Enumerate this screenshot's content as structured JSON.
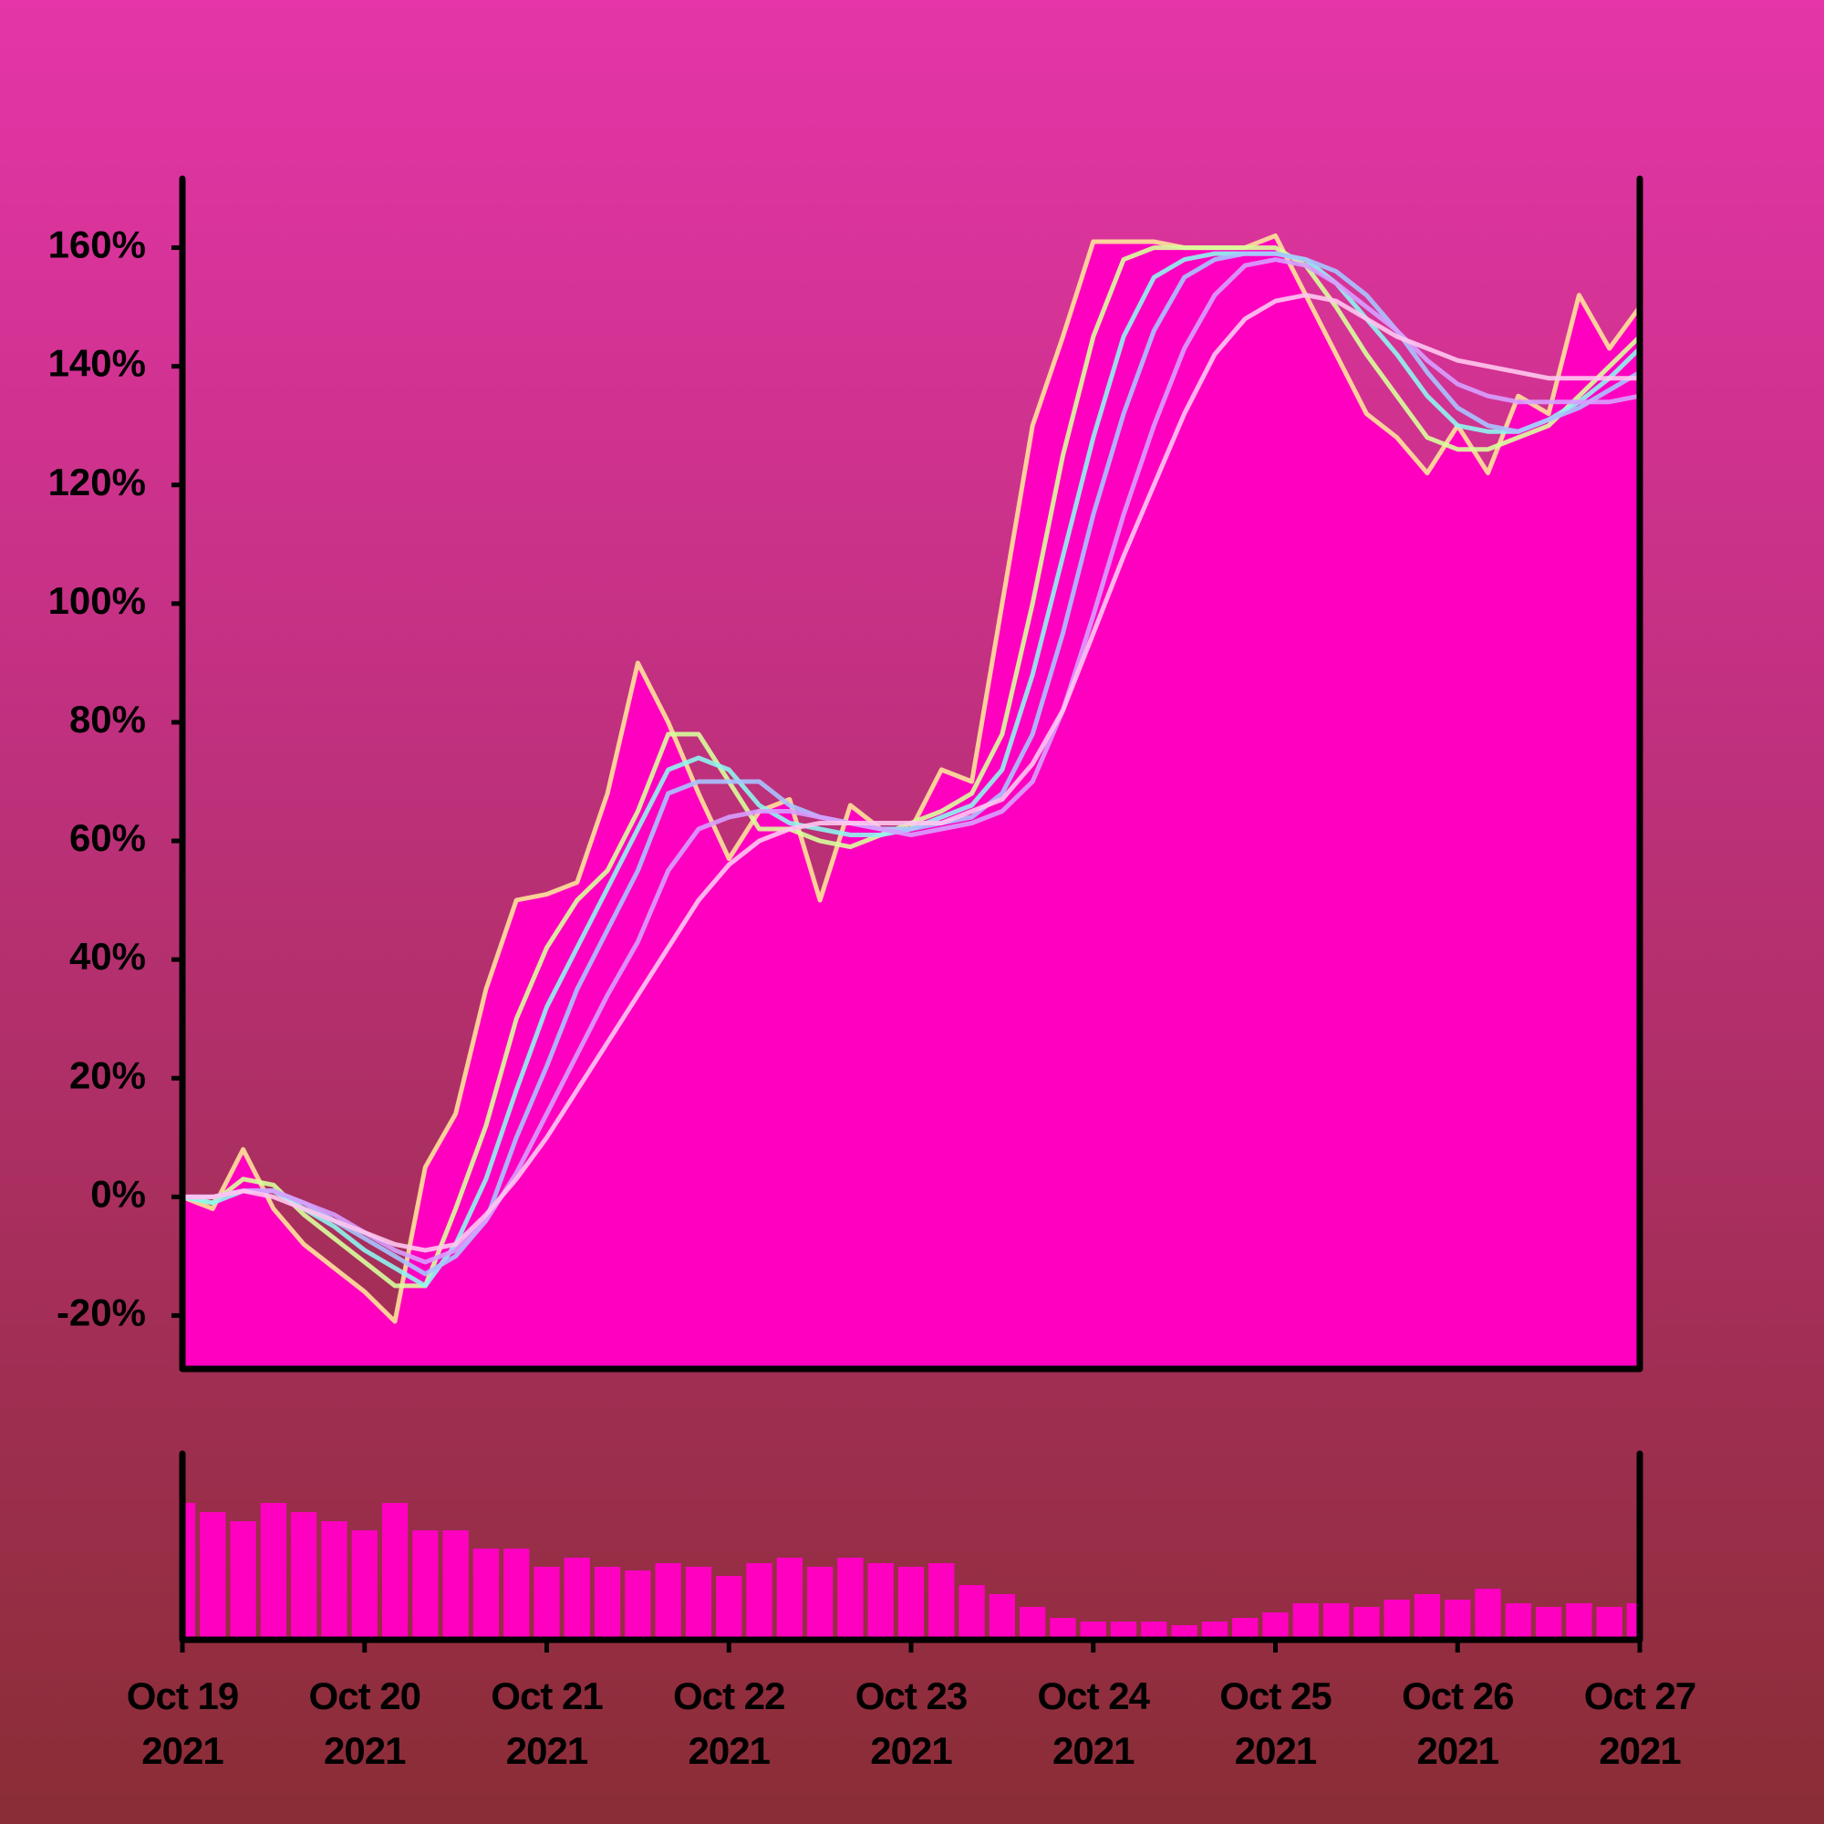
{
  "chart_data": [
    {
      "type": "line",
      "x": [
        0,
        4,
        8,
        12,
        16,
        20,
        24,
        28,
        32,
        36,
        40,
        44,
        48,
        52,
        56,
        60,
        64,
        68,
        72,
        76,
        80,
        84,
        88,
        92,
        96,
        100,
        104,
        108,
        112,
        116,
        120,
        124,
        128,
        132,
        136,
        140,
        144,
        148,
        152,
        156,
        160,
        164,
        168,
        172,
        176,
        180,
        184,
        188,
        192
      ],
      "xlim": [
        0,
        192
      ],
      "ylim": [
        -29,
        171
      ],
      "yticks": [
        {
          "value": -20,
          "label": "-20%"
        },
        {
          "value": 0,
          "label": "0%"
        },
        {
          "value": 20,
          "label": "20%"
        },
        {
          "value": 40,
          "label": "40%"
        },
        {
          "value": 60,
          "label": "60%"
        },
        {
          "value": 80,
          "label": "80%"
        },
        {
          "value": 100,
          "label": "100%"
        },
        {
          "value": 120,
          "label": "120%"
        },
        {
          "value": 140,
          "label": "140%"
        },
        {
          "value": 160,
          "label": "160%"
        }
      ],
      "series": [
        {
          "color": "#ffe39a",
          "fill": "#ff00c0",
          "values": [
            0,
            -2,
            8,
            -2,
            -8,
            -12,
            -16,
            -21,
            5,
            14,
            35,
            50,
            51,
            53,
            68,
            90,
            80,
            68,
            57,
            65,
            67,
            50,
            66,
            62,
            62,
            72,
            70,
            100,
            130,
            145,
            161,
            161,
            161,
            160,
            160,
            160,
            162,
            152,
            142,
            132,
            128,
            122,
            130,
            122,
            135,
            132,
            152,
            143,
            150
          ]
        },
        {
          "color": "#d8ff9c",
          "values": [
            0,
            -1,
            3,
            2,
            -3,
            -7,
            -11,
            -15,
            -15,
            -2,
            12,
            30,
            42,
            50,
            55,
            65,
            78,
            78,
            70,
            62,
            62,
            60,
            59,
            61,
            63,
            65,
            68,
            78,
            100,
            125,
            145,
            158,
            160,
            160,
            160,
            160,
            160,
            157,
            150,
            142,
            135,
            128,
            126,
            126,
            128,
            130,
            135,
            140,
            145
          ]
        },
        {
          "color": "#8ff5f0",
          "values": [
            0,
            -1,
            1,
            1,
            -2,
            -5,
            -9,
            -12,
            -15,
            -8,
            3,
            18,
            32,
            42,
            52,
            62,
            72,
            74,
            72,
            66,
            63,
            62,
            61,
            61,
            62,
            64,
            66,
            72,
            88,
            108,
            128,
            145,
            155,
            158,
            159,
            159,
            159,
            158,
            154,
            148,
            142,
            135,
            130,
            129,
            129,
            131,
            134,
            138,
            143
          ]
        },
        {
          "color": "#a9c4ff",
          "values": [
            0,
            0,
            1,
            1,
            -1,
            -4,
            -7,
            -10,
            -13,
            -10,
            -4,
            10,
            22,
            35,
            45,
            55,
            68,
            70,
            70,
            70,
            66,
            64,
            63,
            62,
            62,
            63,
            64,
            68,
            78,
            95,
            115,
            132,
            146,
            155,
            158,
            159,
            159,
            158,
            156,
            152,
            146,
            139,
            133,
            130,
            129,
            131,
            133,
            136,
            139
          ]
        },
        {
          "color": "#d7a0ff",
          "values": [
            0,
            0,
            1,
            1,
            -1,
            -3,
            -6,
            -9,
            -11,
            -9,
            -4,
            4,
            14,
            24,
            34,
            43,
            55,
            62,
            64,
            65,
            65,
            64,
            63,
            62,
            61,
            62,
            63,
            65,
            70,
            82,
            98,
            115,
            130,
            143,
            152,
            157,
            158,
            157,
            154,
            150,
            146,
            141,
            137,
            135,
            134,
            134,
            134,
            134,
            135
          ]
        },
        {
          "color": "#ffc8f0",
          "values": [
            0,
            0,
            1,
            0,
            -2,
            -4,
            -6,
            -8,
            -9,
            -8,
            -3,
            3,
            10,
            18,
            26,
            34,
            42,
            50,
            56,
            60,
            62,
            63,
            63,
            63,
            63,
            63,
            65,
            67,
            73,
            82,
            95,
            108,
            120,
            132,
            142,
            148,
            151,
            152,
            151,
            148,
            145,
            143,
            141,
            140,
            139,
            138,
            138,
            138,
            138
          ]
        }
      ]
    },
    {
      "type": "bar",
      "x": [
        0,
        4,
        8,
        12,
        16,
        20,
        24,
        28,
        32,
        36,
        40,
        44,
        48,
        52,
        56,
        60,
        64,
        68,
        72,
        76,
        80,
        84,
        88,
        92,
        96,
        100,
        104,
        108,
        112,
        116,
        120,
        124,
        128,
        132,
        136,
        140,
        144,
        148,
        152,
        156,
        160,
        164,
        168,
        172,
        176,
        180,
        184,
        188,
        192
      ],
      "xlim": [
        0,
        192
      ],
      "ylim": [
        0,
        100
      ],
      "color": "#ff00c0",
      "values": [
        75,
        70,
        65,
        75,
        70,
        65,
        60,
        75,
        60,
        60,
        50,
        50,
        40,
        45,
        40,
        38,
        42,
        40,
        35,
        42,
        45,
        40,
        45,
        42,
        40,
        42,
        30,
        25,
        18,
        12,
        10,
        10,
        10,
        8,
        10,
        12,
        15,
        20,
        20,
        18,
        22,
        25,
        22,
        28,
        20,
        18,
        20,
        18,
        20
      ],
      "xticks": [
        {
          "value": 0,
          "label": "Oct 19\n2021"
        },
        {
          "value": 24,
          "label": "Oct 20\n2021"
        },
        {
          "value": 48,
          "label": "Oct 21\n2021"
        },
        {
          "value": 72,
          "label": "Oct 22\n2021"
        },
        {
          "value": 96,
          "label": "Oct 23\n2021"
        },
        {
          "value": 120,
          "label": "Oct 24\n2021"
        },
        {
          "value": 144,
          "label": "Oct 25\n2021"
        },
        {
          "value": 168,
          "label": "Oct 26\n2021"
        },
        {
          "value": 192,
          "label": "Oct 27\n2021"
        }
      ]
    }
  ]
}
